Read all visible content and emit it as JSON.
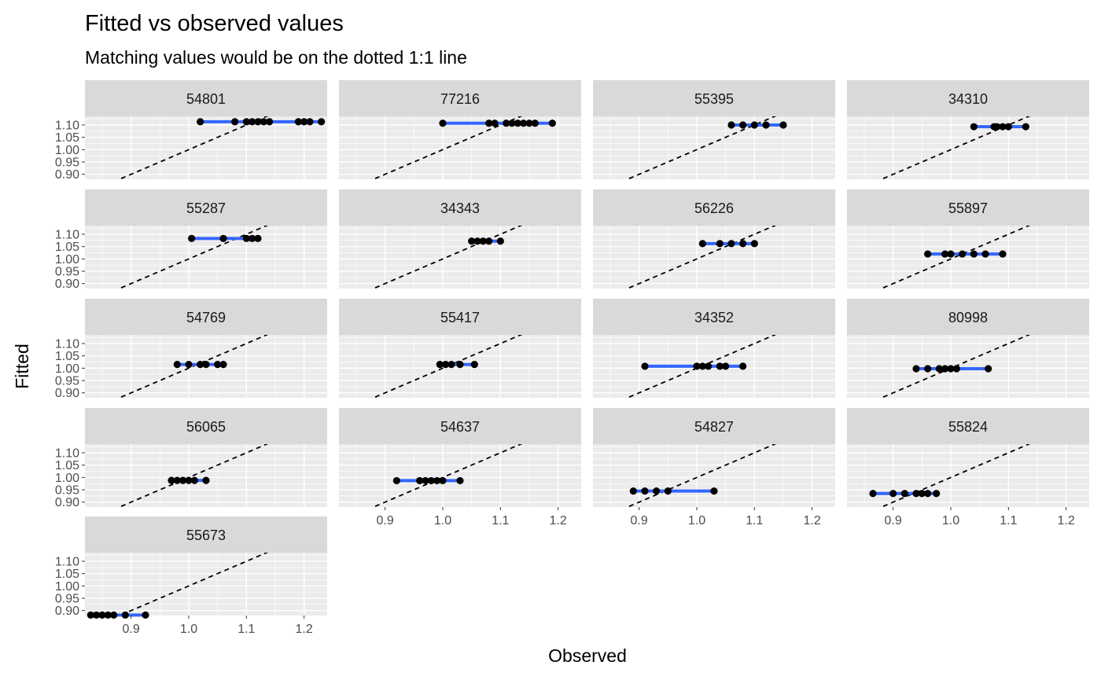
{
  "chart_data": {
    "type": "scatter",
    "title": "Fitted vs observed values",
    "subtitle": "Matching values would be on the dotted 1:1 line",
    "xlabel": "Observed",
    "ylabel": "Fitted",
    "xlim": [
      0.82,
      1.24
    ],
    "ylim": [
      0.88,
      1.135
    ],
    "x_ticks": [
      0.9,
      1.0,
      1.1,
      1.2
    ],
    "x_tick_labels": [
      "0.9",
      "1.0",
      "1.1",
      "1.2"
    ],
    "y_ticks": [
      0.9,
      0.95,
      1.0,
      1.05,
      1.1
    ],
    "y_tick_labels": [
      "0.90",
      "0.95",
      "1.00",
      "1.05",
      "1.10"
    ],
    "grid": true,
    "reference_line": "1:1 dashed",
    "colors": {
      "points": "#000000",
      "fit_line": "#3366FF",
      "reference": "#000000",
      "panel_bg": "#EBEBEB",
      "strip_bg": "#D9D9D9",
      "grid": "#FFFFFF"
    },
    "facets": [
      {
        "label": "54801",
        "y": 1.113,
        "points": [
          1.02,
          1.08,
          1.1,
          1.11,
          1.12,
          1.13,
          1.14,
          1.19,
          1.2,
          1.21,
          1.23
        ]
      },
      {
        "label": "77216",
        "y": 1.107,
        "points": [
          1.0,
          1.08,
          1.09,
          1.11,
          1.12,
          1.13,
          1.14,
          1.15,
          1.16,
          1.19
        ]
      },
      {
        "label": "55395",
        "y": 1.1,
        "points": [
          1.06,
          1.08,
          1.1,
          1.12,
          1.15
        ]
      },
      {
        "label": "34310",
        "y": 1.093,
        "points": [
          1.04,
          1.075,
          1.08,
          1.09,
          1.1,
          1.13
        ]
      },
      {
        "label": "55287",
        "y": 1.083,
        "points": [
          1.005,
          1.06,
          1.1,
          1.11,
          1.12
        ]
      },
      {
        "label": "34343",
        "y": 1.072,
        "points": [
          1.05,
          1.06,
          1.07,
          1.08,
          1.1
        ]
      },
      {
        "label": "56226",
        "y": 1.062,
        "points": [
          1.01,
          1.04,
          1.06,
          1.08,
          1.1
        ]
      },
      {
        "label": "55897",
        "y": 1.02,
        "points": [
          0.96,
          0.99,
          1.0,
          1.02,
          1.04,
          1.06,
          1.09
        ]
      },
      {
        "label": "54769",
        "y": 1.015,
        "points": [
          0.98,
          1.0,
          1.02,
          1.03,
          1.05,
          1.06
        ]
      },
      {
        "label": "55417",
        "y": 1.015,
        "points": [
          0.995,
          1.005,
          1.015,
          1.03,
          1.055
        ]
      },
      {
        "label": "34352",
        "y": 1.008,
        "points": [
          0.91,
          1.0,
          1.01,
          1.02,
          1.04,
          1.05,
          1.08
        ]
      },
      {
        "label": "80998",
        "y": 0.998,
        "points": [
          0.94,
          0.96,
          0.98,
          0.99,
          1.0,
          1.01,
          1.065
        ]
      },
      {
        "label": "56065",
        "y": 0.988,
        "points": [
          0.97,
          0.98,
          0.99,
          1.0,
          1.01,
          1.03
        ]
      },
      {
        "label": "54637",
        "y": 0.987,
        "points": [
          0.92,
          0.96,
          0.97,
          0.98,
          0.99,
          1.0,
          1.03
        ]
      },
      {
        "label": "54827",
        "y": 0.945,
        "points": [
          0.89,
          0.91,
          0.93,
          0.95,
          1.03
        ]
      },
      {
        "label": "55824",
        "y": 0.935,
        "points": [
          0.865,
          0.9,
          0.92,
          0.94,
          0.95,
          0.96,
          0.975
        ]
      },
      {
        "label": "55673",
        "y": 0.882,
        "points": [
          0.83,
          0.84,
          0.85,
          0.86,
          0.87,
          0.89,
          0.925
        ]
      }
    ]
  }
}
